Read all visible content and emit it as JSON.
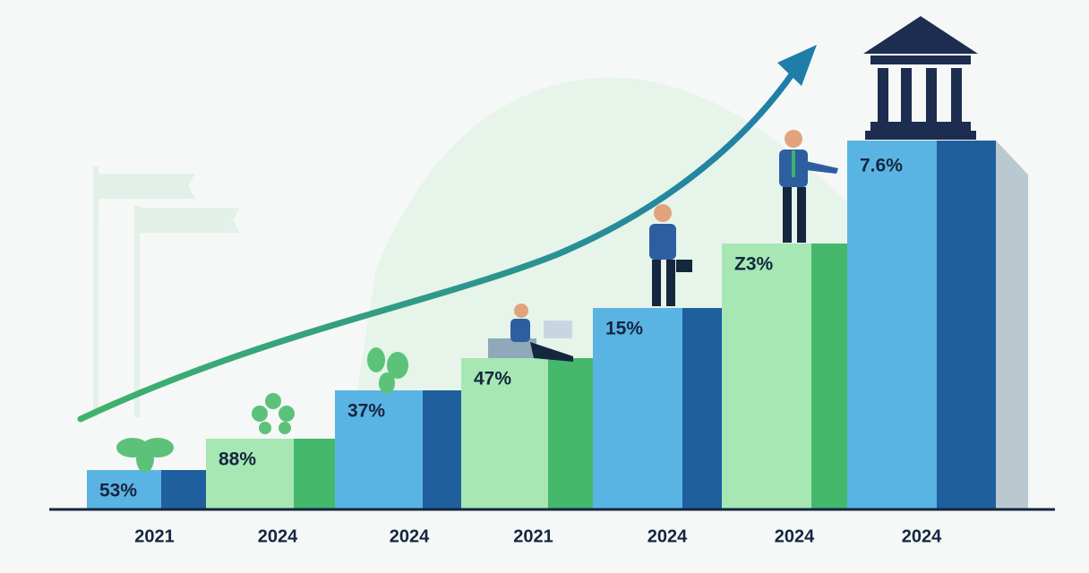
{
  "steps": [
    {
      "label": "53%",
      "year": "2021"
    },
    {
      "label": "88%",
      "year": "2024"
    },
    {
      "label": "37%",
      "year": "2024"
    },
    {
      "label": "47%",
      "year": "2021"
    },
    {
      "label": "15%",
      "year": "2024"
    },
    {
      "label": "Z3%",
      "year": "2024"
    },
    {
      "label": "7.6%",
      "year": "2024"
    }
  ]
}
